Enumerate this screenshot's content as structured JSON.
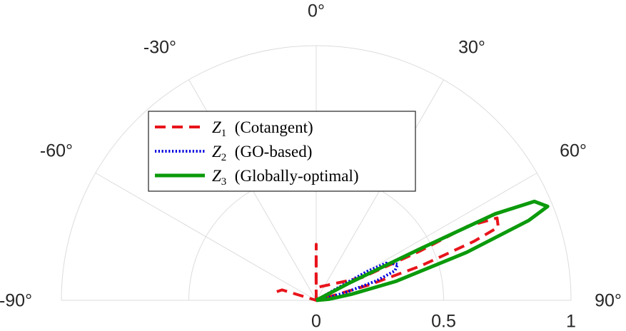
{
  "chart_data": {
    "type": "polar-line",
    "angle_range_deg": [
      -90,
      90
    ],
    "radius_range": [
      0,
      1
    ],
    "angle_ticks": [
      {
        "value": -90,
        "label": "-90°"
      },
      {
        "value": -60,
        "label": "-60°"
      },
      {
        "value": -30,
        "label": "-30°"
      },
      {
        "value": 0,
        "label": "0°"
      },
      {
        "value": 30,
        "label": "30°"
      },
      {
        "value": 60,
        "label": "60°"
      },
      {
        "value": 90,
        "label": "90°"
      }
    ],
    "radius_ticks": [
      {
        "value": 0,
        "label": "0"
      },
      {
        "value": 0.5,
        "label": "0.5"
      },
      {
        "value": 1,
        "label": "1"
      }
    ],
    "legend_position": "upper-left",
    "series": [
      {
        "name": "Z1 (Cotangent)",
        "symbol": "Z",
        "subscript": "1",
        "description": "(Cotangent)",
        "color": "#e8141b",
        "style": "dashed",
        "points": [
          [
            0,
            0
          ],
          [
            -0.3,
            0.1
          ],
          [
            0,
            0.22
          ],
          [
            0,
            0.05
          ],
          [
            63.5,
            0.2
          ],
          [
            64.6,
            0.45
          ],
          [
            63.9,
            0.66
          ],
          [
            65.5,
            0.78
          ],
          [
            68.1,
            0.77
          ],
          [
            69.5,
            0.66
          ],
          [
            71.8,
            0.43
          ],
          [
            73.8,
            0.21
          ],
          [
            75.0,
            0.04
          ],
          [
            0,
            0
          ],
          [
            -73.0,
            0.14
          ],
          [
            -78.0,
            0.16
          ]
        ]
      },
      {
        "name": "Z2 (GO-based)",
        "symbol": "Z",
        "subscript": "2",
        "description": "(GO-based)",
        "color": "#0000e0",
        "style": "dotted",
        "points": [
          [
            0,
            0
          ],
          [
            60.0,
            0.12
          ],
          [
            60.4,
            0.23
          ],
          [
            61.9,
            0.31
          ],
          [
            66.0,
            0.35
          ],
          [
            69.4,
            0.33
          ],
          [
            72.0,
            0.25
          ],
          [
            75.0,
            0.12
          ],
          [
            78.0,
            0.04
          ],
          [
            0,
            0
          ]
        ]
      },
      {
        "name": "Z3 (Globally-optimal)",
        "symbol": "Z",
        "subscript": "3",
        "description": "(Globally-optimal)",
        "color": "#0b9a0b",
        "style": "solid",
        "points": [
          [
            0,
            0
          ],
          [
            62.3,
            0.14
          ],
          [
            63.6,
            0.45
          ],
          [
            64.2,
            0.78
          ],
          [
            65.6,
            0.94
          ],
          [
            67.9,
            0.98
          ],
          [
            69.4,
            0.89
          ],
          [
            72.3,
            0.62
          ],
          [
            76.6,
            0.32
          ],
          [
            80.2,
            0.14
          ],
          [
            85.0,
            0.05
          ],
          [
            0,
            0
          ]
        ]
      }
    ]
  }
}
